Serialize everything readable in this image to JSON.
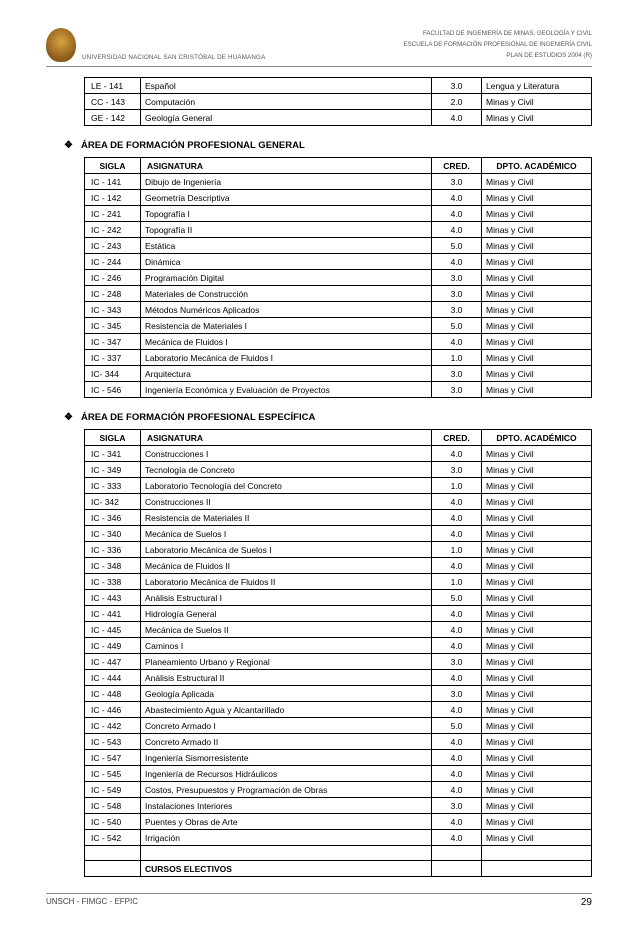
{
  "header": {
    "faculty": "FACULTAD DE INGENIERÍA DE MINAS, GEOLOGÍA Y CIVIL",
    "school": "ESCUELA DE FORMACIÓN PROFESIONAL DE INGENIERÍA CIVIL",
    "plan": "PLAN DE ESTUDIOS 2004 (R)",
    "university": "UNIVERSIDAD NACIONAL SAN CRISTÓBAL DE HUAMANGA"
  },
  "top_table": {
    "rows": [
      [
        "LE - 141",
        "Español",
        "3.0",
        "Lengua y Literatura"
      ],
      [
        "CC - 143",
        "Computación",
        "2.0",
        "Minas y Civil"
      ],
      [
        "GE - 142",
        "Geología General",
        "4.0",
        "Minas y Civil"
      ]
    ]
  },
  "section1": {
    "title": "ÁREA DE FORMACIÓN PROFESIONAL GENERAL",
    "columns": [
      "SIGLA",
      "ASIGNATURA",
      "CRED.",
      "DPTO. ACADÉMICO"
    ],
    "rows": [
      [
        "IC - 141",
        "Dibujo de Ingeniería",
        "3.0",
        "Minas y Civil"
      ],
      [
        "IC - 142",
        "Geometría Descriptiva",
        "4.0",
        "Minas y Civil"
      ],
      [
        "IC - 241",
        "Topografía I",
        "4.0",
        "Minas y Civil"
      ],
      [
        "IC - 242",
        "Topografía  II",
        "4.0",
        "Minas y Civil"
      ],
      [
        "IC - 243",
        "Estática",
        "5.0",
        "Minas y Civil"
      ],
      [
        "IC - 244",
        "Dinámica",
        "4.0",
        "Minas y Civil"
      ],
      [
        "IC - 246",
        "Programación Digital",
        "3.0",
        "Minas y Civil"
      ],
      [
        "IC - 248",
        "Materiales de Construcción",
        "3.0",
        "Minas y Civil"
      ],
      [
        "IC - 343",
        "Métodos Numéricos Aplicados",
        "3.0",
        "Minas y Civil"
      ],
      [
        "IC - 345",
        "Resistencia de Materiales I",
        "5.0",
        "Minas y Civil"
      ],
      [
        "IC - 347",
        "Mecánica de Fluidos  I",
        "4.0",
        "Minas y Civil"
      ],
      [
        "IC - 337",
        "Laboratorio Mecánica de Fluidos I",
        "1.0",
        "Minas y Civil"
      ],
      [
        "IC- 344",
        "Arquitectura",
        "3.0",
        "Minas y Civil"
      ],
      [
        "IC - 546",
        "Ingeniería Económica y Evaluación de Proyectos",
        "3.0",
        "Minas y Civil"
      ]
    ]
  },
  "section2": {
    "title": "ÁREA DE FORMACIÓN PROFESIONAL ESPECÍFICA",
    "columns": [
      "SIGLA",
      "ASIGNATURA",
      "CRED.",
      "DPTO. ACADÉMICO"
    ],
    "rows": [
      [
        "IC - 341",
        "Construcciones  I",
        "4.0",
        "Minas y Civil"
      ],
      [
        "IC - 349",
        "Tecnología de Concreto",
        "3.0",
        "Minas y Civil"
      ],
      [
        "IC - 333",
        "Laboratorio Tecnología del Concreto",
        "1.0",
        "Minas y Civil"
      ],
      [
        "IC- 342",
        "Construcciones  II",
        "4.0",
        "Minas y Civil"
      ],
      [
        "IC - 346",
        "Resistencia de Materiales II",
        "4.0",
        "Minas y Civil"
      ],
      [
        "IC - 340",
        "Mecánica de Suelos I",
        "4.0",
        "Minas y Civil"
      ],
      [
        "IC - 336",
        "Laboratorio Mecánica de Suelos I",
        "1.0",
        "Minas y Civil"
      ],
      [
        "IC - 348",
        "Mecánica de Fluidos  II",
        "4.0",
        "Minas y Civil"
      ],
      [
        "IC - 338",
        "Laboratorio Mecánica de Fluidos II",
        "1.0",
        "Minas y Civil"
      ],
      [
        "IC - 443",
        "Análisis  Estructural  I",
        "5.0",
        "Minas y Civil"
      ],
      [
        "IC - 441",
        "Hidrología General",
        "4.0",
        "Minas y Civil"
      ],
      [
        "IC - 445",
        "Mecánica de Suelos II",
        "4.0",
        "Minas y Civil"
      ],
      [
        "IC - 449",
        "Caminos  I",
        "4.0",
        "Minas y Civil"
      ],
      [
        "IC - 447",
        "Planeamiento Urbano y Regional",
        "3.0",
        "Minas y Civil"
      ],
      [
        "IC - 444",
        "Análisis Estructural II",
        "4.0",
        "Minas y Civil"
      ],
      [
        "IC - 448",
        "Geología Aplicada",
        "3.0",
        "Minas y Civil"
      ],
      [
        "IC - 446",
        "Abastecimiento Agua y Alcantarillado",
        "4.0",
        "Minas y Civil"
      ],
      [
        "IC - 442",
        "Concreto Armado  I",
        "5.0",
        "Minas y Civil"
      ],
      [
        "IC - 543",
        "Concreto Armado  II",
        "4.0",
        "Minas y Civil"
      ],
      [
        "IC - 547",
        "Ingeniería  Sismorresistente",
        "4.0",
        "Minas y Civil"
      ],
      [
        "IC - 545",
        "Ingeniería de Recursos Hidráulicos",
        "4.0",
        "Minas y Civil"
      ],
      [
        "IC - 549",
        "Costos, Presupuestos y Programación de Obras",
        "4.0",
        "Minas y Civil"
      ],
      [
        "IC - 548",
        "Instalaciones Interiores",
        "3.0",
        "Minas y Civil"
      ],
      [
        "IC - 540",
        "Puentes y Obras de Arte",
        "4.0",
        "Minas y Civil"
      ],
      [
        "IC - 542",
        "Irrigación",
        "4.0",
        "Minas y Civil"
      ]
    ],
    "electives_label": "CURSOS ELECTIVOS"
  },
  "footer": {
    "left": "UNSCH - FIMGC - EFPIC",
    "page": "29"
  }
}
